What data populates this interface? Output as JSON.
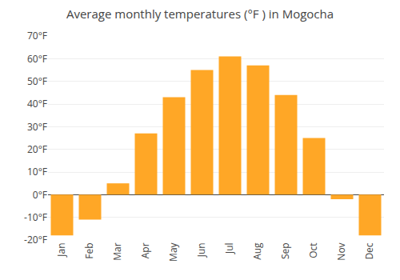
{
  "chart_data": {
    "type": "bar",
    "title": "Average monthly temperatures (°F ) in Mogocha",
    "categories": [
      "Jan",
      "Feb",
      "Mar",
      "Apr",
      "May",
      "Jun",
      "Jul",
      "Aug",
      "Sep",
      "Oct",
      "Nov",
      "Dec"
    ],
    "values": [
      -18,
      -11,
      5,
      27,
      43,
      55,
      61,
      57,
      44,
      25,
      -2,
      -18
    ],
    "color": "#FFA726",
    "ylim": [
      -20,
      70
    ],
    "yticks": [
      {
        "value": -20,
        "label": "-20°F"
      },
      {
        "value": -10,
        "label": "-10°F"
      },
      {
        "value": 0,
        "label": "0°F"
      },
      {
        "value": 10,
        "label": "10°F"
      },
      {
        "value": 20,
        "label": "20°F"
      },
      {
        "value": 30,
        "label": "30°F"
      },
      {
        "value": 40,
        "label": "40°F"
      },
      {
        "value": 50,
        "label": "50°F"
      },
      {
        "value": 60,
        "label": "60°F"
      },
      {
        "value": 70,
        "label": "70°F"
      }
    ],
    "grid": true
  }
}
